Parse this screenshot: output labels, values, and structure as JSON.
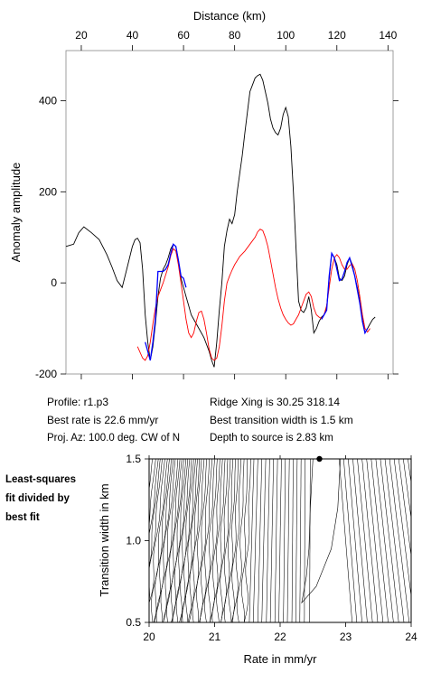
{
  "chart_data": [
    {
      "type": "line",
      "xlabel": "Distance (km)",
      "ylabel": "Anomaly amplitude",
      "xlim": [
        14,
        142
      ],
      "ylim": [
        -200,
        510
      ],
      "x_ticks": [
        20,
        40,
        60,
        80,
        100,
        120,
        140
      ],
      "y_ticks": [
        -200,
        0,
        200,
        400
      ],
      "series": [
        {
          "color": "#000000",
          "points": [
            [
              14,
              80
            ],
            [
              17,
              85
            ],
            [
              19,
              110
            ],
            [
              21,
              123
            ],
            [
              24,
              110
            ],
            [
              27,
              95
            ],
            [
              30,
              62
            ],
            [
              32,
              35
            ],
            [
              34,
              5
            ],
            [
              36,
              -10
            ],
            [
              38,
              35
            ],
            [
              40,
              80
            ],
            [
              41,
              95
            ],
            [
              42,
              98
            ],
            [
              43,
              88
            ],
            [
              44,
              30
            ],
            [
              45,
              -70
            ],
            [
              46,
              -130
            ],
            [
              47,
              -170
            ],
            [
              48,
              -140
            ],
            [
              49,
              -90
            ],
            [
              50,
              -30
            ],
            [
              51,
              10
            ],
            [
              52,
              30
            ],
            [
              53,
              40
            ],
            [
              54,
              55
            ],
            [
              55,
              75
            ],
            [
              56,
              85
            ],
            [
              57,
              80
            ],
            [
              58,
              50
            ],
            [
              59,
              10
            ],
            [
              60,
              -10
            ],
            [
              61,
              -30
            ],
            [
              62,
              -50
            ],
            [
              63,
              -70
            ],
            [
              64,
              -80
            ],
            [
              66,
              -100
            ],
            [
              68,
              -120
            ],
            [
              70,
              -150
            ],
            [
              71,
              -170
            ],
            [
              72,
              -185
            ],
            [
              73,
              -130
            ],
            [
              74,
              -60
            ],
            [
              75,
              0
            ],
            [
              76,
              80
            ],
            [
              77,
              115
            ],
            [
              78,
              140
            ],
            [
              79,
              130
            ],
            [
              80,
              150
            ],
            [
              81,
              200
            ],
            [
              82,
              240
            ],
            [
              83,
              280
            ],
            [
              84,
              330
            ],
            [
              85,
              375
            ],
            [
              86,
              420
            ],
            [
              87,
              435
            ],
            [
              88,
              450
            ],
            [
              89,
              455
            ],
            [
              90,
              458
            ],
            [
              91,
              445
            ],
            [
              92,
              420
            ],
            [
              93,
              395
            ],
            [
              94,
              360
            ],
            [
              95,
              340
            ],
            [
              96,
              330
            ],
            [
              97,
              325
            ],
            [
              98,
              340
            ],
            [
              99,
              370
            ],
            [
              100,
              385
            ],
            [
              101,
              365
            ],
            [
              102,
              300
            ],
            [
              103,
              200
            ],
            [
              104,
              80
            ],
            [
              105,
              -40
            ],
            [
              106,
              -60
            ],
            [
              107,
              -65
            ],
            [
              108,
              -55
            ],
            [
              109,
              -30
            ],
            [
              110,
              -60
            ],
            [
              111,
              -110
            ],
            [
              112,
              -100
            ],
            [
              113,
              -85
            ],
            [
              114,
              -75
            ],
            [
              115,
              -70
            ],
            [
              116,
              -55
            ],
            [
              117,
              10
            ],
            [
              118,
              65
            ],
            [
              119,
              55
            ],
            [
              120,
              40
            ],
            [
              121,
              10
            ],
            [
              122,
              5
            ],
            [
              123,
              15
            ],
            [
              124,
              40
            ],
            [
              125,
              55
            ],
            [
              126,
              40
            ],
            [
              127,
              15
            ],
            [
              128,
              -10
            ],
            [
              129,
              -40
            ],
            [
              130,
              -80
            ],
            [
              131,
              -110
            ],
            [
              132,
              -100
            ],
            [
              133,
              -90
            ],
            [
              134,
              -80
            ],
            [
              135,
              -75
            ]
          ]
        },
        {
          "color": "#ff0000",
          "points": [
            [
              42,
              -140
            ],
            [
              44,
              -165
            ],
            [
              45,
              -170
            ],
            [
              46,
              -160
            ],
            [
              47,
              -130
            ],
            [
              48,
              -90
            ],
            [
              49,
              -55
            ],
            [
              50,
              -30
            ],
            [
              52,
              0
            ],
            [
              54,
              35
            ],
            [
              55,
              60
            ],
            [
              56,
              75
            ],
            [
              57,
              70
            ],
            [
              58,
              40
            ],
            [
              59,
              0
            ],
            [
              60,
              -40
            ],
            [
              61,
              -80
            ],
            [
              62,
              -110
            ],
            [
              63,
              -120
            ],
            [
              64,
              -110
            ],
            [
              65,
              -85
            ],
            [
              66,
              -65
            ],
            [
              67,
              -62
            ],
            [
              68,
              -80
            ],
            [
              69,
              -110
            ],
            [
              70,
              -145
            ],
            [
              71,
              -165
            ],
            [
              72,
              -170
            ],
            [
              73,
              -165
            ],
            [
              74,
              -140
            ],
            [
              75,
              -95
            ],
            [
              76,
              -40
            ],
            [
              77,
              0
            ],
            [
              78,
              15
            ],
            [
              79,
              28
            ],
            [
              80,
              40
            ],
            [
              82,
              58
            ],
            [
              84,
              70
            ],
            [
              86,
              85
            ],
            [
              88,
              100
            ],
            [
              89,
              112
            ],
            [
              90,
              118
            ],
            [
              91,
              115
            ],
            [
              92,
              100
            ],
            [
              93,
              80
            ],
            [
              94,
              50
            ],
            [
              95,
              20
            ],
            [
              96,
              -10
            ],
            [
              97,
              -35
            ],
            [
              98,
              -55
            ],
            [
              99,
              -70
            ],
            [
              100,
              -80
            ],
            [
              101,
              -88
            ],
            [
              102,
              -93
            ],
            [
              103,
              -90
            ],
            [
              104,
              -80
            ],
            [
              105,
              -70
            ],
            [
              106,
              -55
            ],
            [
              107,
              -40
            ],
            [
              108,
              -25
            ],
            [
              109,
              -20
            ],
            [
              110,
              -30
            ],
            [
              111,
              -55
            ],
            [
              112,
              -70
            ],
            [
              113,
              -75
            ],
            [
              114,
              -78
            ],
            [
              115,
              -70
            ],
            [
              116,
              -50
            ],
            [
              117,
              -10
            ],
            [
              118,
              30
            ],
            [
              119,
              55
            ],
            [
              120,
              62
            ],
            [
              121,
              55
            ],
            [
              122,
              40
            ],
            [
              123,
              30
            ],
            [
              124,
              30
            ],
            [
              125,
              38
            ],
            [
              126,
              42
            ],
            [
              127,
              30
            ],
            [
              128,
              5
            ],
            [
              129,
              -30
            ],
            [
              130,
              -70
            ],
            [
              131,
              -100
            ],
            [
              132,
              -108
            ],
            [
              133,
              -100
            ]
          ]
        },
        {
          "color": "#0000ff",
          "points": [
            [
              45,
              -130
            ],
            [
              46,
              -150
            ],
            [
              47,
              -170
            ],
            [
              48,
              -130
            ],
            [
              49,
              -80
            ],
            [
              50,
              25
            ],
            [
              52,
              25
            ],
            [
              53,
              30
            ],
            [
              54,
              40
            ],
            [
              55,
              65
            ],
            [
              56,
              85
            ],
            [
              57,
              80
            ],
            [
              58,
              50
            ],
            [
              59,
              15
            ],
            [
              60,
              10
            ],
            [
              61,
              -10
            ],
            [
              114,
              -80
            ],
            [
              115,
              -70
            ],
            [
              116,
              -60
            ],
            [
              117,
              15
            ],
            [
              118,
              65
            ],
            [
              119,
              55
            ],
            [
              120,
              30
            ],
            [
              121,
              5
            ],
            [
              122,
              8
            ],
            [
              123,
              25
            ],
            [
              124,
              45
            ],
            [
              125,
              55
            ],
            [
              126,
              35
            ],
            [
              127,
              15
            ],
            [
              128,
              -15
            ],
            [
              129,
              -45
            ],
            [
              130,
              -85
            ],
            [
              131,
              -110
            ],
            [
              132,
              -100
            ]
          ]
        }
      ]
    },
    {
      "type": "line",
      "xlabel": "Rate in mm/yr",
      "ylabel": "Transition width in km",
      "xlim": [
        20,
        24
      ],
      "ylim": [
        0.5,
        1.5
      ],
      "x_ticks": [
        20,
        21,
        22,
        23,
        24
      ],
      "y_ticks": [
        0.5,
        1.0,
        1.5
      ],
      "marker": {
        "x": 22.6,
        "y": 1.5
      },
      "contour_top_x": [
        20.05,
        20.1,
        20.14,
        20.17,
        20.2,
        20.24,
        20.28,
        20.31,
        20.34,
        20.37,
        20.4,
        20.44,
        20.47,
        20.5,
        20.53,
        20.56,
        20.59,
        20.62,
        20.65,
        20.68,
        20.71,
        20.74,
        20.77,
        20.8,
        20.84,
        20.88,
        20.92,
        20.96,
        21.0,
        21.04,
        21.08,
        21.12,
        21.16,
        21.2,
        21.24,
        21.28,
        21.32,
        21.36,
        21.4,
        21.45,
        21.5,
        21.55,
        21.6,
        21.66,
        21.72,
        21.78,
        21.84,
        21.9,
        21.96,
        22.02,
        22.08,
        22.14,
        22.2,
        22.26,
        22.32,
        22.38,
        22.46,
        22.9,
        22.97,
        23.04,
        23.11,
        23.18,
        23.25,
        23.32,
        23.39,
        23.46,
        23.53,
        23.6,
        23.67,
        23.74,
        23.81,
        23.88,
        23.95
      ],
      "contour_shift": [
        0.28,
        0.28,
        0.27,
        0.27,
        0.26,
        0.26,
        0.25,
        0.25,
        0.24,
        0.24,
        0.23,
        0.23,
        0.22,
        0.22,
        0.21,
        0.21,
        0.2,
        0.2,
        0.19,
        0.19,
        0.18,
        0.18,
        0.17,
        0.17,
        0.16,
        0.16,
        0.15,
        0.15,
        0.14,
        0.14,
        0.13,
        0.13,
        0.12,
        0.12,
        0.11,
        0.11,
        0.1,
        0.1,
        0.09,
        0.09,
        0.08,
        0.08,
        0.07,
        0.07,
        0.06,
        0.06,
        0.05,
        0.05,
        0.04,
        0.04,
        0.03,
        0.03,
        0.02,
        0.02,
        0.02,
        0.01,
        0.01,
        -0.2,
        -0.2,
        -0.21,
        -0.22,
        -0.23,
        -0.24,
        -0.25,
        -0.26,
        -0.27,
        -0.28,
        -0.29,
        -0.3,
        -0.31,
        -0.32,
        -0.33,
        -0.34
      ]
    }
  ],
  "info": {
    "profile": "Profile: r1.p3",
    "ridge": "Ridge Xing is 30.25 318.14",
    "rate": "Best rate is 22.6 mm/yr",
    "width": "Best transition width is 1.5 km",
    "az": "Proj. Az: 100.0 deg. CW of N",
    "depth": "Depth to source is   2.83 km"
  },
  "side_note": [
    "Least-squares",
    "fit divided by",
    "best fit"
  ]
}
